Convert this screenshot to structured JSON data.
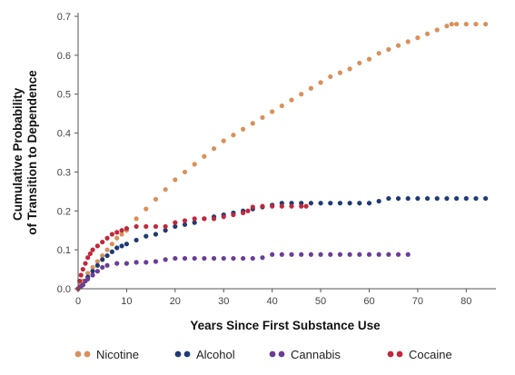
{
  "chart_data": {
    "type": "scatter",
    "title": "",
    "xlabel": "Years Since First Substance Use",
    "ylabel_lines": [
      "Cumulative Probability",
      "of Transition to Dependence"
    ],
    "xlim": [
      0,
      85
    ],
    "ylim": [
      0,
      0.7
    ],
    "x_ticks": [
      0,
      10,
      20,
      30,
      40,
      50,
      60,
      70,
      80
    ],
    "y_ticks": [
      "0.0",
      "0.1",
      "0.2",
      "0.3",
      "0.4",
      "0.5",
      "0.6",
      "0.7"
    ],
    "grid": false,
    "legend_position": "bottom",
    "series": [
      {
        "name": "Nicotine",
        "color": "#D8915A",
        "points": [
          [
            0,
            0.0
          ],
          [
            0.5,
            0.01
          ],
          [
            1,
            0.02
          ],
          [
            2,
            0.04
          ],
          [
            3,
            0.055
          ],
          [
            4,
            0.07
          ],
          [
            5,
            0.085
          ],
          [
            6,
            0.1
          ],
          [
            7,
            0.115
          ],
          [
            8,
            0.13
          ],
          [
            9,
            0.14
          ],
          [
            10,
            0.15
          ],
          [
            12,
            0.18
          ],
          [
            14,
            0.205
          ],
          [
            16,
            0.23
          ],
          [
            18,
            0.255
          ],
          [
            20,
            0.28
          ],
          [
            22,
            0.3
          ],
          [
            24,
            0.32
          ],
          [
            26,
            0.34
          ],
          [
            28,
            0.36
          ],
          [
            30,
            0.38
          ],
          [
            32,
            0.395
          ],
          [
            34,
            0.41
          ],
          [
            36,
            0.425
          ],
          [
            38,
            0.44
          ],
          [
            40,
            0.455
          ],
          [
            42,
            0.47
          ],
          [
            44,
            0.485
          ],
          [
            46,
            0.5
          ],
          [
            48,
            0.515
          ],
          [
            50,
            0.53
          ],
          [
            52,
            0.545
          ],
          [
            54,
            0.555
          ],
          [
            56,
            0.565
          ],
          [
            58,
            0.58
          ],
          [
            60,
            0.59
          ],
          [
            62,
            0.605
          ],
          [
            64,
            0.615
          ],
          [
            66,
            0.625
          ],
          [
            68,
            0.635
          ],
          [
            70,
            0.645
          ],
          [
            72,
            0.655
          ],
          [
            74,
            0.665
          ],
          [
            76,
            0.675
          ],
          [
            77,
            0.68
          ],
          [
            78,
            0.68
          ],
          [
            80,
            0.68
          ],
          [
            82,
            0.68
          ],
          [
            84,
            0.68
          ]
        ]
      },
      {
        "name": "Alcohol",
        "color": "#1F3B73",
        "points": [
          [
            0,
            0.0
          ],
          [
            0.5,
            0.005
          ],
          [
            1,
            0.01
          ],
          [
            1.5,
            0.02
          ],
          [
            2,
            0.03
          ],
          [
            3,
            0.045
          ],
          [
            4,
            0.06
          ],
          [
            5,
            0.075
          ],
          [
            6,
            0.085
          ],
          [
            7,
            0.095
          ],
          [
            8,
            0.105
          ],
          [
            9,
            0.11
          ],
          [
            10,
            0.115
          ],
          [
            12,
            0.125
          ],
          [
            14,
            0.135
          ],
          [
            16,
            0.14
          ],
          [
            18,
            0.15
          ],
          [
            20,
            0.16
          ],
          [
            22,
            0.165
          ],
          [
            24,
            0.17
          ],
          [
            26,
            0.18
          ],
          [
            28,
            0.185
          ],
          [
            30,
            0.19
          ],
          [
            32,
            0.195
          ],
          [
            34,
            0.2
          ],
          [
            36,
            0.205
          ],
          [
            38,
            0.21
          ],
          [
            40,
            0.215
          ],
          [
            42,
            0.22
          ],
          [
            44,
            0.22
          ],
          [
            46,
            0.22
          ],
          [
            48,
            0.22
          ],
          [
            50,
            0.22
          ],
          [
            52,
            0.22
          ],
          [
            54,
            0.22
          ],
          [
            56,
            0.22
          ],
          [
            58,
            0.22
          ],
          [
            60,
            0.22
          ],
          [
            62,
            0.225
          ],
          [
            64,
            0.232
          ],
          [
            66,
            0.232
          ],
          [
            68,
            0.232
          ],
          [
            70,
            0.232
          ],
          [
            72,
            0.232
          ],
          [
            74,
            0.232
          ],
          [
            76,
            0.232
          ],
          [
            78,
            0.232
          ],
          [
            80,
            0.232
          ],
          [
            82,
            0.232
          ],
          [
            84,
            0.232
          ]
        ]
      },
      {
        "name": "Cannabis",
        "color": "#6A3D96",
        "points": [
          [
            0,
            0.0
          ],
          [
            0.5,
            0.005
          ],
          [
            1,
            0.01
          ],
          [
            1.5,
            0.02
          ],
          [
            2,
            0.025
          ],
          [
            3,
            0.035
          ],
          [
            4,
            0.045
          ],
          [
            5,
            0.055
          ],
          [
            6,
            0.06
          ],
          [
            8,
            0.065
          ],
          [
            10,
            0.065
          ],
          [
            12,
            0.068
          ],
          [
            14,
            0.068
          ],
          [
            16,
            0.07
          ],
          [
            18,
            0.075
          ],
          [
            20,
            0.078
          ],
          [
            22,
            0.078
          ],
          [
            24,
            0.078
          ],
          [
            26,
            0.078
          ],
          [
            28,
            0.078
          ],
          [
            30,
            0.078
          ],
          [
            32,
            0.078
          ],
          [
            34,
            0.078
          ],
          [
            36,
            0.078
          ],
          [
            38,
            0.08
          ],
          [
            40,
            0.088
          ],
          [
            42,
            0.088
          ],
          [
            44,
            0.088
          ],
          [
            46,
            0.088
          ],
          [
            48,
            0.088
          ],
          [
            50,
            0.088
          ],
          [
            52,
            0.088
          ],
          [
            54,
            0.088
          ],
          [
            56,
            0.088
          ],
          [
            58,
            0.088
          ],
          [
            60,
            0.088
          ],
          [
            62,
            0.088
          ],
          [
            64,
            0.088
          ],
          [
            66,
            0.088
          ],
          [
            68,
            0.088
          ]
        ]
      },
      {
        "name": "Cocaine",
        "color": "#C0283C",
        "points": [
          [
            0,
            0.0
          ],
          [
            0.3,
            0.02
          ],
          [
            0.6,
            0.035
          ],
          [
            1,
            0.05
          ],
          [
            1.5,
            0.065
          ],
          [
            2,
            0.08
          ],
          [
            2.5,
            0.09
          ],
          [
            3,
            0.1
          ],
          [
            4,
            0.11
          ],
          [
            5,
            0.12
          ],
          [
            6,
            0.13
          ],
          [
            7,
            0.14
          ],
          [
            8,
            0.145
          ],
          [
            9,
            0.15
          ],
          [
            10,
            0.155
          ],
          [
            12,
            0.16
          ],
          [
            14,
            0.16
          ],
          [
            16,
            0.16
          ],
          [
            18,
            0.16
          ],
          [
            20,
            0.17
          ],
          [
            22,
            0.175
          ],
          [
            24,
            0.18
          ],
          [
            26,
            0.18
          ],
          [
            28,
            0.18
          ],
          [
            30,
            0.185
          ],
          [
            32,
            0.19
          ],
          [
            34,
            0.195
          ],
          [
            35,
            0.2
          ],
          [
            36,
            0.21
          ],
          [
            38,
            0.212
          ],
          [
            40,
            0.212
          ],
          [
            42,
            0.212
          ],
          [
            44,
            0.212
          ],
          [
            46,
            0.212
          ],
          [
            47,
            0.212
          ]
        ]
      }
    ]
  }
}
